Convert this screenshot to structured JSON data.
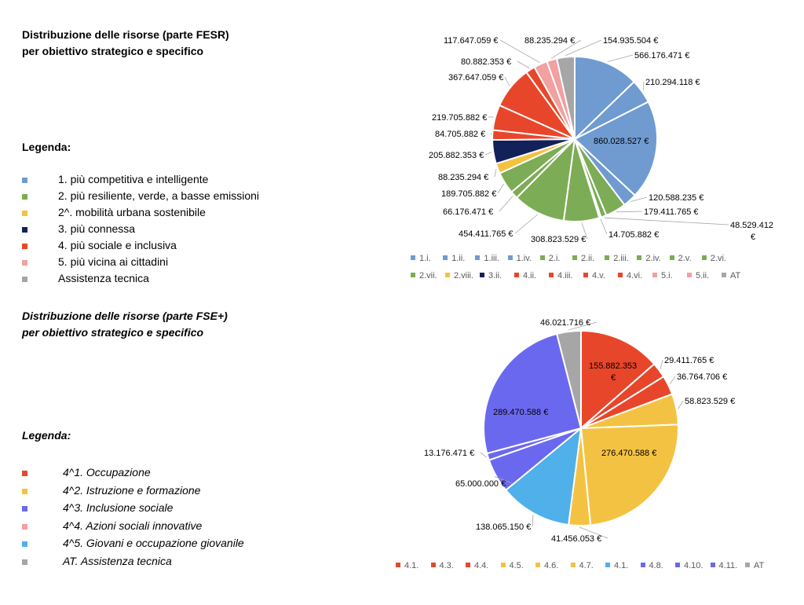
{
  "chart_data": [
    {
      "type": "pie",
      "title": [
        "Distribuzione delle risorse (parte FESR)",
        "per obiettivo strategico e specifico"
      ],
      "legend_title": "Legenda:",
      "currency": "€",
      "slices": [
        {
          "label": "1.i.",
          "value": 566176471,
          "value_text": "566.176.471",
          "color": "#6f9bd1"
        },
        {
          "label": "1.ii.",
          "value": 210294118,
          "value_text": "210.294.118",
          "color": "#6f9bd1"
        },
        {
          "label": "1.iii.",
          "value": 860028527,
          "value_text": "860.028.527",
          "color": "#6f9bd1"
        },
        {
          "label": "1.iv.",
          "value": 120588235,
          "value_text": "120.588.235",
          "color": "#6f9bd1"
        },
        {
          "label": "2.i.",
          "value": 179411765,
          "value_text": "179.411.765",
          "color": "#7cac55"
        },
        {
          "label": "2.ii.",
          "value": 48529412,
          "value_text": "48.529.412",
          "color": "#7cac55"
        },
        {
          "label": "2.iii.",
          "value": 14705882,
          "value_text": "14.705.882",
          "color": "#7cac55"
        },
        {
          "label": "2.iv.",
          "value": 308823529,
          "value_text": "308.823.529",
          "color": "#7cac55"
        },
        {
          "label": "2.v.",
          "value": 454411765,
          "value_text": "454.411.765",
          "color": "#7cac55"
        },
        {
          "label": "2.vi.",
          "value": 66176471,
          "value_text": "66.176.471",
          "color": "#7cac55"
        },
        {
          "label": "2.vii.",
          "value": 189705882,
          "value_text": "189.705.882",
          "color": "#7cac55"
        },
        {
          "label": "2.viii.",
          "value": 88235294,
          "value_text": "88.235.294",
          "color": "#f4c242"
        },
        {
          "label": "3.ii.",
          "value": 205882353,
          "value_text": "205.882.353",
          "color": "#12215a"
        },
        {
          "label": "4.ii.",
          "value": 84705882,
          "value_text": "84.705.882",
          "color": "#e8462a"
        },
        {
          "label": "4.iii.",
          "value": 219705882,
          "value_text": "219.705.882",
          "color": "#e8462a"
        },
        {
          "label": "4.v.",
          "value": 367647059,
          "value_text": "367.647.059",
          "color": "#e8462a"
        },
        {
          "label": "4.vi.",
          "value": 80882353,
          "value_text": "80.882.353",
          "color": "#e8462a"
        },
        {
          "label": "5.i.",
          "value": 117647059,
          "value_text": "117.647.059",
          "color": "#f2a0a0"
        },
        {
          "label": "5.ii.",
          "value": 88235294,
          "value_text": "88.235.294",
          "color": "#f2a0a0"
        },
        {
          "label": "AT",
          "value": 154935504,
          "value_text": "154.935.504",
          "color": "#a6a6a6"
        }
      ],
      "group_legend": [
        {
          "label": "1. più competitiva e intelligente",
          "color": "#6f9bd1"
        },
        {
          "label": "2. più resiliente, verde, a basse emissioni",
          "color": "#7cac55"
        },
        {
          "label": "2^. mobilità urbana sostenibile",
          "color": "#f4c242"
        },
        {
          "label": "3. più connessa",
          "color": "#12215a"
        },
        {
          "label": "4. più sociale e inclusiva",
          "color": "#e8462a"
        },
        {
          "label": "5. più vicina ai cittadini",
          "color": "#f2a0a0"
        },
        {
          "label": "Assistenza tecnica",
          "color": "#a6a6a6"
        }
      ],
      "legend_position": "bottom"
    },
    {
      "type": "pie",
      "title": [
        "Distribuzione delle risorse (parte FSE+)",
        "per obiettivo strategico e specifico"
      ],
      "legend_title": "Legenda:",
      "currency": "€",
      "slices": [
        {
          "label": "4.1.",
          "value": 155882353,
          "value_text": "155.882.353",
          "color": "#e8462a"
        },
        {
          "label": "4.3.",
          "value": 29411765,
          "value_text": "29.411.765",
          "color": "#e8462a"
        },
        {
          "label": "4.4.",
          "value": 36764706,
          "value_text": "36.764.706",
          "color": "#e8462a"
        },
        {
          "label": "4.5.",
          "value": 58823529,
          "value_text": "58.823.529",
          "color": "#f4c242"
        },
        {
          "label": "4.6.",
          "value": 276470588,
          "value_text": "276.470.588",
          "color": "#f4c242"
        },
        {
          "label": "4.7.",
          "value": 41456053,
          "value_text": "41.456.053",
          "color": "#f4c242"
        },
        {
          "label": "4.1.",
          "value": 138065150,
          "value_text": "138.065.150",
          "color": "#4fb0ea"
        },
        {
          "label": "4.8.",
          "value": 65000000,
          "value_text": "65.000.000",
          "color": "#6b68f0"
        },
        {
          "label": "4.10.",
          "value": 13176471,
          "value_text": "13.176.471",
          "color": "#6b68f0"
        },
        {
          "label": "4.11.",
          "value": 289470588,
          "value_text": "289.470.588",
          "color": "#6b68f0"
        },
        {
          "label": "AT",
          "value": 46021716,
          "value_text": "46.021.716",
          "color": "#a6a6a6"
        }
      ],
      "group_legend": [
        {
          "label": "4^1. Occupazione",
          "color": "#e8462a"
        },
        {
          "label": "4^2. Istruzione e formazione",
          "color": "#f4c242"
        },
        {
          "label": "4^3. Inclusione sociale",
          "color": "#6b68f0"
        },
        {
          "label": "4^4. Azioni sociali innovative",
          "color": "#f2a0a0"
        },
        {
          "label": "4^5. Giovani e occupazione giovanile",
          "color": "#4fb0ea"
        },
        {
          "label": "AT. Assistenza tecnica",
          "color": "#a6a6a6"
        }
      ],
      "legend_position": "bottom"
    }
  ]
}
